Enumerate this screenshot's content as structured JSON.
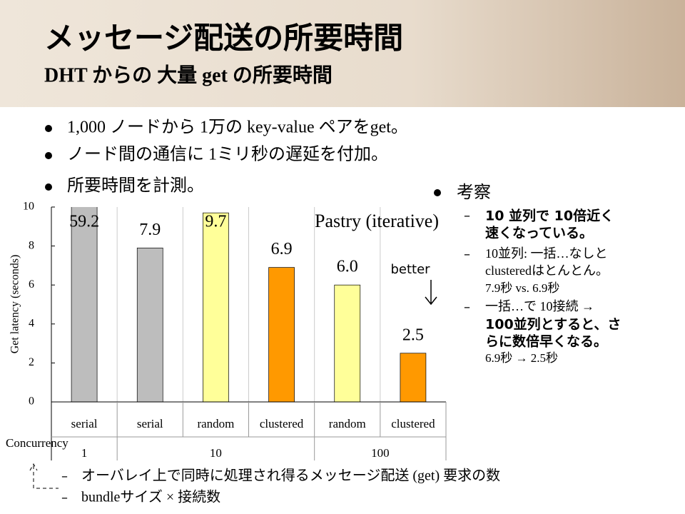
{
  "header": {
    "title": "メッセージ配送の所要時間",
    "subtitle": "DHT からの 大量 get の所要時間"
  },
  "bullets": [
    "1,000 ノードから 1万の key-value ペアをget。",
    "ノード間の通信に 1ミリ秒の遅延を付加。",
    "所要時間を計測。"
  ],
  "discussion": {
    "heading": "考察",
    "items": [
      [
        "10 並列で 10倍近く",
        "速くなっている。"
      ],
      [
        "10並列: 一括…なしと",
        "clusteredはとんとん。",
        "7.9秒 vs. 6.9秒"
      ],
      [
        "一括…で 10接続 →",
        "100並列とすると、さ",
        "らに数倍早くなる。",
        "6.9秒 → 2.5秒"
      ]
    ]
  },
  "chart_data": {
    "type": "bar",
    "title": "Pastry (iterative)",
    "y_label": "Get latency (seconds)",
    "categories": [
      "serial",
      "serial",
      "random",
      "clustered",
      "random",
      "clustered"
    ],
    "values": [
      59.2,
      7.9,
      9.7,
      6.9,
      6.0,
      2.5
    ],
    "value_labels": [
      "59.2",
      "7.9",
      "9.7",
      "6.9",
      "6.0",
      "2.5"
    ],
    "colors": [
      "#bdbdbd",
      "#bdbdbd",
      "#ffff99",
      "#ff9900",
      "#ffff99",
      "#ff9900"
    ],
    "group_title": "Concurrency",
    "groups": [
      "1",
      "10",
      "100"
    ],
    "annotation": "better",
    "ylim": [
      0,
      10
    ],
    "yticks": [
      0,
      2,
      4,
      6,
      8,
      10
    ]
  },
  "notes": [
    "オーバレイ上で同時に処理され得るメッセージ配送 (get) 要求の数",
    "bundleサイズ × 接続数"
  ]
}
